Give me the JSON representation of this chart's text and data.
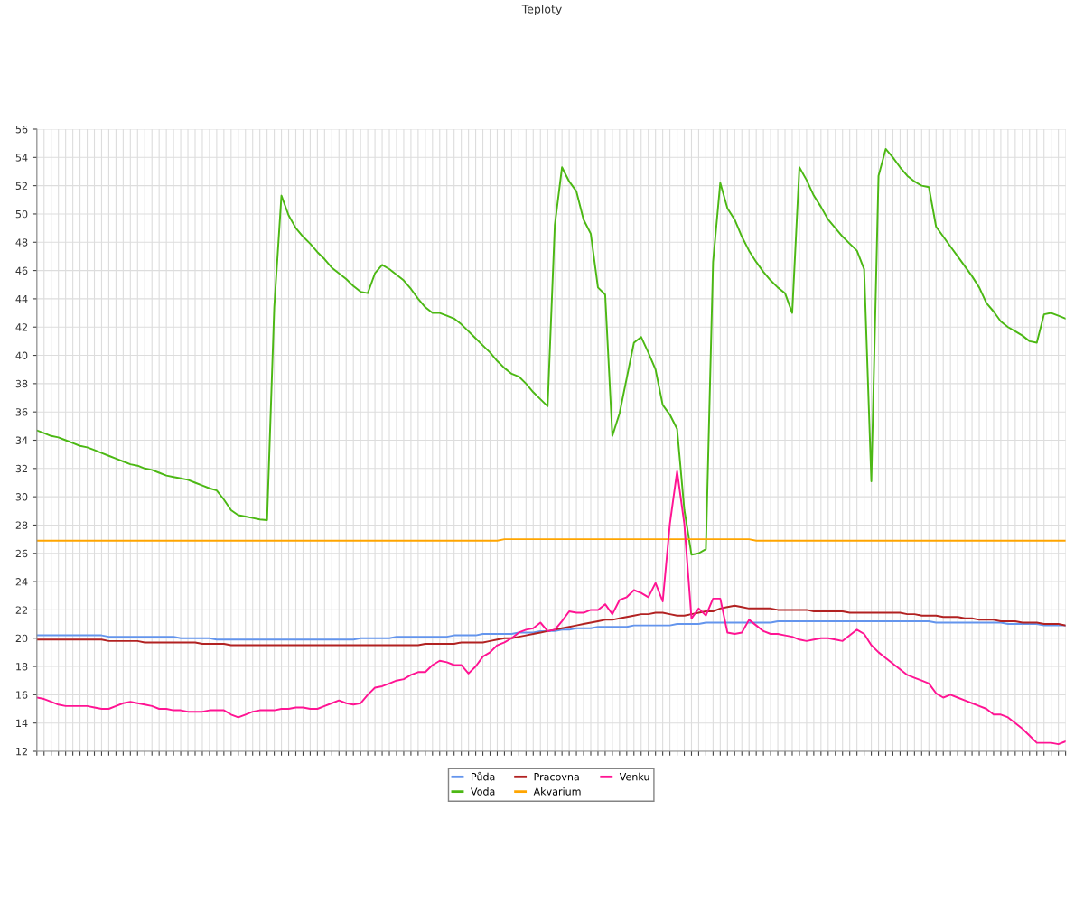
{
  "chart_data": {
    "type": "line",
    "title": "Teploty",
    "categories": [
      null,
      null,
      null,
      null,
      null,
      null,
      null,
      null,
      null,
      null,
      null,
      null,
      null,
      null,
      null,
      null,
      null,
      null,
      null,
      null,
      null,
      null,
      null,
      null,
      null,
      null,
      null,
      null,
      null,
      null,
      null,
      null,
      null,
      null,
      null,
      null,
      null,
      null,
      null,
      null,
      null,
      null,
      null,
      null,
      null,
      null,
      null,
      null,
      null,
      null,
      null,
      null,
      null,
      null,
      null,
      null,
      null,
      null,
      null,
      null,
      null,
      null,
      null,
      null,
      null,
      null,
      null,
      null,
      null,
      null,
      null,
      null,
      null,
      null,
      null,
      null,
      null,
      null,
      null,
      null,
      null,
      null,
      null,
      null,
      null,
      null,
      null,
      null,
      null,
      null,
      null,
      null,
      null,
      null,
      null,
      null,
      null,
      null,
      null,
      null,
      null,
      null,
      null,
      null,
      null,
      null,
      null,
      null,
      null,
      null,
      null,
      null,
      null,
      null,
      null,
      null,
      null,
      null,
      null,
      null,
      null,
      null,
      null,
      null,
      null,
      null,
      null,
      null,
      null,
      null,
      null,
      null,
      null,
      null,
      null,
      null,
      null,
      null,
      null,
      null,
      null,
      null,
      null,
      null
    ],
    "ylim": [
      12,
      56
    ],
    "yticks": [
      12,
      14,
      16,
      18,
      20,
      22,
      24,
      26,
      28,
      30,
      32,
      34,
      36,
      38,
      40,
      42,
      44,
      46,
      48,
      50,
      52,
      54,
      56
    ],
    "grid": true,
    "legend": "bottom",
    "marker": "none",
    "line_style": "solid",
    "series": [
      {
        "name": "Půda",
        "color": "#6495ed",
        "values": [
          20.2,
          20.2,
          20.2,
          20.2,
          20.2,
          20.2,
          20.2,
          20.2,
          20.2,
          20.2,
          20.1,
          20.1,
          20.1,
          20.1,
          20.1,
          20.1,
          20.1,
          20.1,
          20.1,
          20.1,
          20.0,
          20.0,
          20.0,
          20.0,
          20.0,
          19.9,
          19.9,
          19.9,
          19.9,
          19.9,
          19.9,
          19.9,
          19.9,
          19.9,
          19.9,
          19.9,
          19.9,
          19.9,
          19.9,
          19.9,
          19.9,
          19.9,
          19.9,
          19.9,
          19.9,
          20.0,
          20.0,
          20.0,
          20.0,
          20.0,
          20.1,
          20.1,
          20.1,
          20.1,
          20.1,
          20.1,
          20.1,
          20.1,
          20.2,
          20.2,
          20.2,
          20.2,
          20.3,
          20.3,
          20.3,
          20.3,
          20.3,
          20.4,
          20.4,
          20.4,
          20.5,
          20.5,
          20.5,
          20.6,
          20.6,
          20.7,
          20.7,
          20.7,
          20.8,
          20.8,
          20.8,
          20.8,
          20.8,
          20.9,
          20.9,
          20.9,
          20.9,
          20.9,
          20.9,
          21.0,
          21.0,
          21.0,
          21.0,
          21.1,
          21.1,
          21.1,
          21.1,
          21.1,
          21.1,
          21.1,
          21.1,
          21.1,
          21.1,
          21.2,
          21.2,
          21.2,
          21.2,
          21.2,
          21.2,
          21.2,
          21.2,
          21.2,
          21.2,
          21.2,
          21.2,
          21.2,
          21.2,
          21.2,
          21.2,
          21.2,
          21.2,
          21.2,
          21.2,
          21.2,
          21.2,
          21.1,
          21.1,
          21.1,
          21.1,
          21.1,
          21.1,
          21.1,
          21.1,
          21.1,
          21.1,
          21.0,
          21.0,
          21.0,
          21.0,
          21.0,
          20.9,
          20.9,
          20.9,
          20.9
        ]
      },
      {
        "name": "Voda",
        "color": "#4cb814",
        "values": [
          34.7,
          34.5,
          34.3,
          34.2,
          34.0,
          33.8,
          33.6,
          33.5,
          33.3,
          33.1,
          32.9,
          32.7,
          32.5,
          32.3,
          32.2,
          32.0,
          31.9,
          31.7,
          31.5,
          31.4,
          31.3,
          31.2,
          31.0,
          30.8,
          30.6,
          30.45,
          29.8,
          29.05,
          28.7,
          28.6,
          28.5,
          28.4,
          28.35,
          43.4,
          51.3,
          49.9,
          49.0,
          48.4,
          47.9,
          47.3,
          46.8,
          46.2,
          45.8,
          45.4,
          44.9,
          44.5,
          44.4,
          45.8,
          46.4,
          46.1,
          45.7,
          45.3,
          44.7,
          44.0,
          43.4,
          43.0,
          43.0,
          42.8,
          42.6,
          42.2,
          41.7,
          41.2,
          40.7,
          40.2,
          39.6,
          39.1,
          38.7,
          38.5,
          38.0,
          37.4,
          36.9,
          36.4,
          49.2,
          53.3,
          52.3,
          51.6,
          49.6,
          48.6,
          44.8,
          44.3,
          34.3,
          35.9,
          38.4,
          40.9,
          41.3,
          40.2,
          39.0,
          36.5,
          35.8,
          34.8,
          29.1,
          25.9,
          26.0,
          26.3,
          46.6,
          52.2,
          50.4,
          49.6,
          48.4,
          47.4,
          46.6,
          45.9,
          45.3,
          44.8,
          44.4,
          43.0,
          53.3,
          52.4,
          51.3,
          50.5,
          49.6,
          49.0,
          48.4,
          47.9,
          47.4,
          46.1,
          31.1,
          52.7,
          54.6,
          54.0,
          53.3,
          52.7,
          52.3,
          52.0,
          51.9,
          49.1,
          48.4,
          47.7,
          47.0,
          46.3,
          45.6,
          44.8,
          43.7,
          43.1,
          42.4,
          42.0,
          41.7,
          41.4,
          41.0,
          40.9,
          42.9,
          43.0,
          42.8,
          42.6
        ]
      },
      {
        "name": "Pracovna",
        "color": "#b22222",
        "values": [
          19.9,
          19.9,
          19.9,
          19.9,
          19.9,
          19.9,
          19.9,
          19.9,
          19.9,
          19.9,
          19.8,
          19.8,
          19.8,
          19.8,
          19.8,
          19.7,
          19.7,
          19.7,
          19.7,
          19.7,
          19.7,
          19.7,
          19.7,
          19.6,
          19.6,
          19.6,
          19.6,
          19.5,
          19.5,
          19.5,
          19.5,
          19.5,
          19.5,
          19.5,
          19.5,
          19.5,
          19.5,
          19.5,
          19.5,
          19.5,
          19.5,
          19.5,
          19.5,
          19.5,
          19.5,
          19.5,
          19.5,
          19.5,
          19.5,
          19.5,
          19.5,
          19.5,
          19.5,
          19.5,
          19.6,
          19.6,
          19.6,
          19.6,
          19.6,
          19.7,
          19.7,
          19.7,
          19.7,
          19.8,
          19.9,
          20.0,
          20.0,
          20.1,
          20.2,
          20.3,
          20.4,
          20.5,
          20.6,
          20.7,
          20.8,
          20.9,
          21.0,
          21.1,
          21.2,
          21.3,
          21.3,
          21.4,
          21.5,
          21.6,
          21.7,
          21.7,
          21.8,
          21.8,
          21.7,
          21.6,
          21.6,
          21.7,
          21.8,
          21.9,
          21.9,
          22.1,
          22.2,
          22.3,
          22.2,
          22.1,
          22.1,
          22.1,
          22.1,
          22.0,
          22.0,
          22.0,
          22.0,
          22.0,
          21.9,
          21.9,
          21.9,
          21.9,
          21.9,
          21.8,
          21.8,
          21.8,
          21.8,
          21.8,
          21.8,
          21.8,
          21.8,
          21.7,
          21.7,
          21.6,
          21.6,
          21.6,
          21.5,
          21.5,
          21.5,
          21.4,
          21.4,
          21.3,
          21.3,
          21.3,
          21.2,
          21.2,
          21.2,
          21.1,
          21.1,
          21.1,
          21.0,
          21.0,
          21.0,
          20.9
        ]
      },
      {
        "name": "Akvarium",
        "color": "#ffa500",
        "values": [
          26.9,
          26.9,
          26.9,
          26.9,
          26.9,
          26.9,
          26.9,
          26.9,
          26.9,
          26.9,
          26.9,
          26.9,
          26.9,
          26.9,
          26.9,
          26.9,
          26.9,
          26.9,
          26.9,
          26.9,
          26.9,
          26.9,
          26.9,
          26.9,
          26.9,
          26.9,
          26.9,
          26.9,
          26.9,
          26.9,
          26.9,
          26.9,
          26.9,
          26.9,
          26.9,
          26.9,
          26.9,
          26.9,
          26.9,
          26.9,
          26.9,
          26.9,
          26.9,
          26.9,
          26.9,
          26.9,
          26.9,
          26.9,
          26.9,
          26.9,
          26.9,
          26.9,
          26.9,
          26.9,
          26.9,
          26.9,
          26.9,
          26.9,
          26.9,
          26.9,
          26.9,
          26.9,
          26.9,
          26.9,
          26.9,
          27.0,
          27.0,
          27.0,
          27.0,
          27.0,
          27.0,
          27.0,
          27.0,
          27.0,
          27.0,
          27.0,
          27.0,
          27.0,
          27.0,
          27.0,
          27.0,
          27.0,
          27.0,
          27.0,
          27.0,
          27.0,
          27.0,
          27.0,
          27.0,
          27.0,
          27.0,
          27.0,
          27.0,
          27.0,
          27.0,
          27.0,
          27.0,
          27.0,
          27.0,
          27.0,
          26.9,
          26.9,
          26.9,
          26.9,
          26.9,
          26.9,
          26.9,
          26.9,
          26.9,
          26.9,
          26.9,
          26.9,
          26.9,
          26.9,
          26.9,
          26.9,
          26.9,
          26.9,
          26.9,
          26.9,
          26.9,
          26.9,
          26.9,
          26.9,
          26.9,
          26.9,
          26.9,
          26.9,
          26.9,
          26.9,
          26.9,
          26.9,
          26.9,
          26.9,
          26.9,
          26.9,
          26.9,
          26.9,
          26.9,
          26.9,
          26.9,
          26.9,
          26.9,
          26.9
        ]
      },
      {
        "name": "Venku",
        "color": "#ff1493",
        "values": [
          15.8,
          15.7,
          15.5,
          15.3,
          15.2,
          15.2,
          15.2,
          15.2,
          15.1,
          15.0,
          15.0,
          15.2,
          15.4,
          15.5,
          15.4,
          15.3,
          15.2,
          15.0,
          15.0,
          14.9,
          14.9,
          14.8,
          14.8,
          14.8,
          14.9,
          14.9,
          14.9,
          14.6,
          14.4,
          14.6,
          14.8,
          14.9,
          14.9,
          14.9,
          15.0,
          15.0,
          15.1,
          15.1,
          15.0,
          15.0,
          15.2,
          15.4,
          15.6,
          15.4,
          15.3,
          15.4,
          16.0,
          16.5,
          16.6,
          16.8,
          17.0,
          17.1,
          17.4,
          17.6,
          17.6,
          18.1,
          18.4,
          18.3,
          18.1,
          18.1,
          17.5,
          18.0,
          18.7,
          19.0,
          19.5,
          19.7,
          20.0,
          20.4,
          20.6,
          20.7,
          21.1,
          20.5,
          20.6,
          21.2,
          21.9,
          21.8,
          21.8,
          22.0,
          22.0,
          22.4,
          21.7,
          22.7,
          22.9,
          23.4,
          23.2,
          22.9,
          23.9,
          22.6,
          28.1,
          31.8,
          28.1,
          21.4,
          22.1,
          21.6,
          22.8,
          22.8,
          20.4,
          20.3,
          20.4,
          21.3,
          20.9,
          20.5,
          20.3,
          20.3,
          20.2,
          20.1,
          19.9,
          19.8,
          19.9,
          20.0,
          20.0,
          19.9,
          19.8,
          20.2,
          20.6,
          20.3,
          19.5,
          19.0,
          18.6,
          18.2,
          17.8,
          17.4,
          17.2,
          17.0,
          16.8,
          16.1,
          15.8,
          16.0,
          15.8,
          15.6,
          15.4,
          15.2,
          15.0,
          14.6,
          14.6,
          14.4,
          14.0,
          13.6,
          13.1,
          12.6,
          12.6,
          12.6,
          12.5,
          12.7
        ]
      }
    ]
  }
}
